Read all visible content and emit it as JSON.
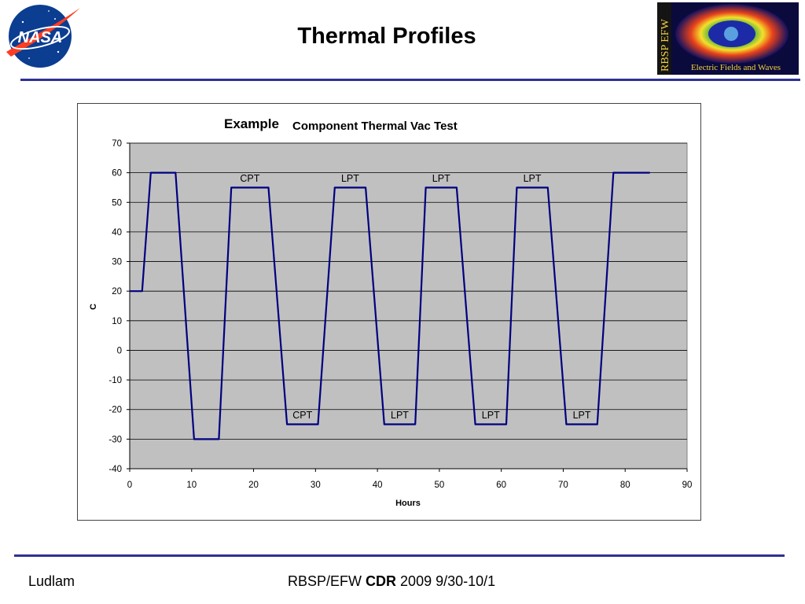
{
  "slide": {
    "title": "Thermal Profiles",
    "nasa_logo_text": "NASA",
    "efw_logo_side_text": "RBSP EFW",
    "efw_logo_caption": "Electric Fields and Waves",
    "footer_left": "Ludlam",
    "footer_prefix": "RBSP/EFW",
    "footer_bold": "CDR",
    "footer_suffix": "2009 9/30-10/1",
    "accent_color": "#2e3192"
  },
  "chart_data": {
    "type": "line",
    "title_prefix": "Example",
    "title": "Component Thermal Vac Test",
    "xlabel": "Hours",
    "ylabel": "C",
    "xlim": [
      0,
      90
    ],
    "ylim": [
      -40,
      70
    ],
    "xticks": [
      0,
      10,
      20,
      30,
      40,
      50,
      60,
      70,
      80,
      90
    ],
    "yticks": [
      70,
      60,
      50,
      40,
      30,
      20,
      10,
      0,
      -10,
      -20,
      -30,
      -40
    ],
    "grid": true,
    "legend": "none",
    "plot_background": "#c0c0c0",
    "line_color": "#000080",
    "series": [
      {
        "x": [
          0,
          2,
          3.4,
          7.4,
          10.4,
          14.4,
          16.4,
          22.4,
          25.4,
          30.4,
          33.1,
          38.1,
          41.1,
          46.1,
          47.8,
          52.8,
          55.8,
          60.8,
          62.5,
          67.5,
          70.5,
          75.5,
          78.1,
          84
        ],
        "y": [
          20,
          20,
          60,
          60,
          -30,
          -30,
          55,
          55,
          -25,
          -25,
          55,
          55,
          -25,
          -25,
          55,
          55,
          -25,
          -25,
          55,
          55,
          -25,
          -25,
          60,
          60
        ]
      }
    ],
    "annotations": [
      {
        "text": "CPT",
        "x": 19.4,
        "y": 57
      },
      {
        "text": "LPT",
        "x": 35.6,
        "y": 57
      },
      {
        "text": "LPT",
        "x": 50.3,
        "y": 57
      },
      {
        "text": "LPT",
        "x": 65.0,
        "y": 57
      },
      {
        "text": "CPT",
        "x": 27.9,
        "y": -23
      },
      {
        "text": "LPT",
        "x": 43.6,
        "y": -23
      },
      {
        "text": "LPT",
        "x": 58.3,
        "y": -23
      },
      {
        "text": "LPT",
        "x": 73.0,
        "y": -23
      }
    ]
  }
}
